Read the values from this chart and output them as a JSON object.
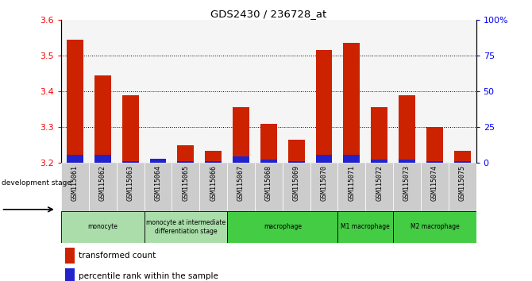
{
  "title": "GDS2430 / 236728_at",
  "samples": [
    "GSM115061",
    "GSM115062",
    "GSM115063",
    "GSM115064",
    "GSM115065",
    "GSM115066",
    "GSM115067",
    "GSM115068",
    "GSM115069",
    "GSM115070",
    "GSM115071",
    "GSM115072",
    "GSM115073",
    "GSM115074",
    "GSM115075"
  ],
  "red_values": [
    3.545,
    3.445,
    3.39,
    3.2,
    3.25,
    3.235,
    3.355,
    3.31,
    3.265,
    3.515,
    3.535,
    3.355,
    3.39,
    3.3,
    3.235
  ],
  "blue_values": [
    0.022,
    0.022,
    0.005,
    0.012,
    0.005,
    0.005,
    0.018,
    0.01,
    0.005,
    0.022,
    0.022,
    0.01,
    0.01,
    0.005,
    0.005
  ],
  "ymin": 3.2,
  "ymax": 3.6,
  "yticks_left": [
    3.2,
    3.3,
    3.4,
    3.5,
    3.6
  ],
  "yticks_right": [
    0,
    25,
    50,
    75,
    100
  ],
  "ytick_right_labels": [
    "0",
    "25",
    "50",
    "75",
    "100%"
  ],
  "bar_color_red": "#cc2200",
  "bar_color_blue": "#2222cc",
  "background_plot": "#f5f5f5",
  "gsm_bg_color": "#cccccc",
  "group_configs": [
    {
      "label": "monocyte",
      "start": 0,
      "end": 2,
      "color": "#aaddaa"
    },
    {
      "label": "monocyte at intermediate\ndifferentiation stage",
      "start": 3,
      "end": 5,
      "color": "#aaddaa"
    },
    {
      "label": "macrophage",
      "start": 6,
      "end": 9,
      "color": "#44cc44"
    },
    {
      "label": "M1 macrophage",
      "start": 10,
      "end": 11,
      "color": "#44cc44"
    },
    {
      "label": "M2 macrophage",
      "start": 12,
      "end": 14,
      "color": "#44cc44"
    }
  ]
}
